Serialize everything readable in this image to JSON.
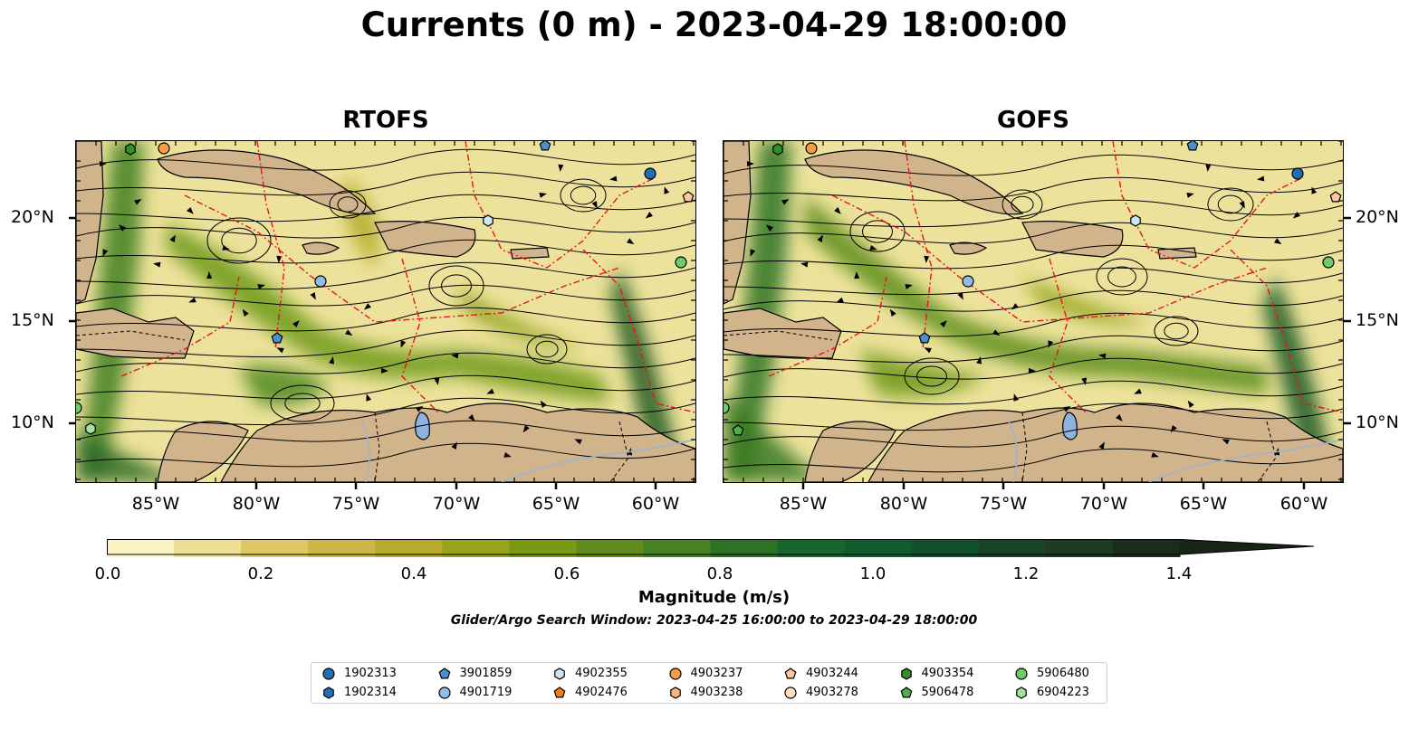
{
  "title": "Currents (0 m) - 2023-04-29 18:00:00",
  "panels": [
    {
      "title": "RTOFS"
    },
    {
      "title": "GOFS"
    }
  ],
  "lat_ticks": [
    "20°N",
    "15°N",
    "10°N"
  ],
  "lon_ticks": [
    "85°W",
    "80°W",
    "75°W",
    "70°W",
    "65°W",
    "60°W"
  ],
  "colorbar": {
    "label": "Magnitude (m/s)",
    "ticks": [
      "0.0",
      "0.2",
      "0.4",
      "0.6",
      "0.8",
      "1.0",
      "1.2",
      "1.4"
    ],
    "colors": [
      "#fbf3c3",
      "#eedf94",
      "#dec866",
      "#cdb646",
      "#b6ad2e",
      "#99a41b",
      "#7a9a13",
      "#5f8c1a",
      "#468222",
      "#2c7326",
      "#16672e",
      "#0f5c2e",
      "#13502c",
      "#1a4427",
      "#1d3a22",
      "#1a2d1a"
    ],
    "extend_color": "#172416"
  },
  "search_window": "Glider/Argo Search Window: 2023-04-25 16:00:00 to 2023-04-29 18:00:00",
  "legend": [
    {
      "label": "1902313",
      "marker": "circle",
      "color": "#1f6fb4"
    },
    {
      "label": "1902314",
      "marker": "hexagon",
      "color": "#1f6fb4"
    },
    {
      "label": "3901859",
      "marker": "pentagon",
      "color": "#4a90d0"
    },
    {
      "label": "4901719",
      "marker": "circle",
      "color": "#8fbfe6"
    },
    {
      "label": "4902355",
      "marker": "hexagon",
      "color": "#cde4f6"
    },
    {
      "label": "4902476",
      "marker": "pentagon",
      "color": "#f07e14"
    },
    {
      "label": "4903237",
      "marker": "circle",
      "color": "#f59c4a"
    },
    {
      "label": "4903238",
      "marker": "hexagon",
      "color": "#fab67e"
    },
    {
      "label": "4903244",
      "marker": "pentagon",
      "color": "#fcc79e"
    },
    {
      "label": "4903278",
      "marker": "circle",
      "color": "#fde0c6"
    },
    {
      "label": "4903354",
      "marker": "hexagon",
      "color": "#2f8f2b"
    },
    {
      "label": "5906478",
      "marker": "pentagon",
      "color": "#4fb04a"
    },
    {
      "label": "5906480",
      "marker": "circle",
      "color": "#6fca6a"
    },
    {
      "label": "6904223",
      "marker": "hexagon",
      "color": "#a6e29c"
    }
  ]
}
